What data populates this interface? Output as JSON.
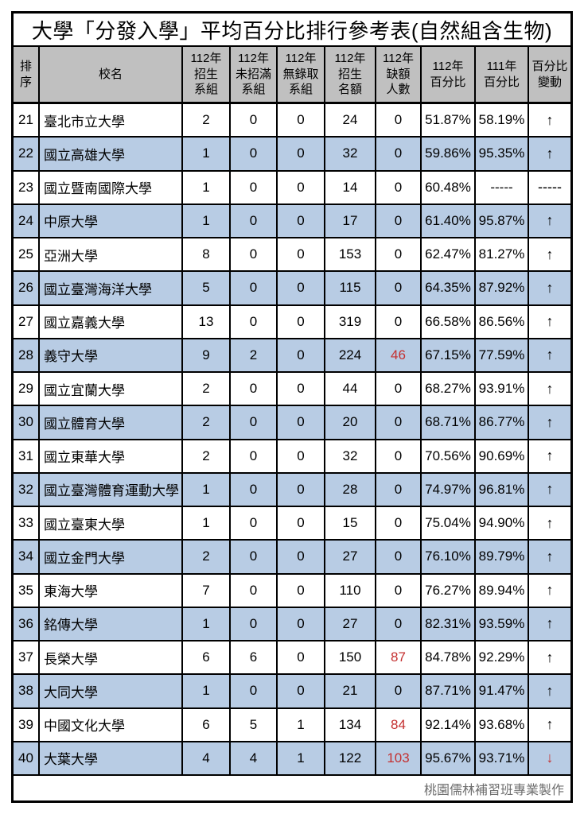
{
  "title": "大學「分發入學」平均百分比排行參考表(自然組含生物)",
  "footer": {
    "credit": "桃園儒林補習班專業製作"
  },
  "colors": {
    "header_bg": "#c0c0c0",
    "stripe_row_bg": "#b8cce4",
    "alert_red": "#c43030",
    "footer_text": "#6e6e6e",
    "border": "#000000"
  },
  "table": {
    "columns": [
      {
        "key": "rank",
        "label": "排\n序"
      },
      {
        "key": "name",
        "label": "校名"
      },
      {
        "key": "c112_groups",
        "label": "112年\n招生\n系組"
      },
      {
        "key": "c112_unfilled",
        "label": "112年\n未招滿\n系組"
      },
      {
        "key": "c112_noadmit",
        "label": "112年\n無錄取\n系組"
      },
      {
        "key": "c112_quota",
        "label": "112年\n招生\n名額"
      },
      {
        "key": "c112_vacancy",
        "label": "112年\n缺額\n人數"
      },
      {
        "key": "pct112",
        "label": "112年\n百分比"
      },
      {
        "key": "pct111",
        "label": "111年\n百分比"
      },
      {
        "key": "change",
        "label": "百分比\n變動"
      }
    ],
    "rows": [
      {
        "rank": "21",
        "name": "臺北市立大學",
        "c112_groups": "2",
        "c112_unfilled": "0",
        "c112_noadmit": "0",
        "c112_quota": "24",
        "c112_vacancy": "0",
        "pct112": "51.87%",
        "pct111": "58.19%",
        "change": "↑",
        "shaded": false,
        "red_cells": []
      },
      {
        "rank": "22",
        "name": "國立高雄大學",
        "c112_groups": "1",
        "c112_unfilled": "0",
        "c112_noadmit": "0",
        "c112_quota": "32",
        "c112_vacancy": "0",
        "pct112": "59.86%",
        "pct111": "95.35%",
        "change": "↑",
        "shaded": true,
        "red_cells": []
      },
      {
        "rank": "23",
        "name": "國立暨南國際大學",
        "c112_groups": "1",
        "c112_unfilled": "0",
        "c112_noadmit": "0",
        "c112_quota": "14",
        "c112_vacancy": "0",
        "pct112": "60.48%",
        "pct111": "-----",
        "change": "-----",
        "shaded": false,
        "red_cells": []
      },
      {
        "rank": "24",
        "name": "中原大學",
        "c112_groups": "1",
        "c112_unfilled": "0",
        "c112_noadmit": "0",
        "c112_quota": "17",
        "c112_vacancy": "0",
        "pct112": "61.40%",
        "pct111": "95.87%",
        "change": "↑",
        "shaded": true,
        "red_cells": []
      },
      {
        "rank": "25",
        "name": "亞洲大學",
        "c112_groups": "8",
        "c112_unfilled": "0",
        "c112_noadmit": "0",
        "c112_quota": "153",
        "c112_vacancy": "0",
        "pct112": "62.47%",
        "pct111": "81.27%",
        "change": "↑",
        "shaded": false,
        "red_cells": []
      },
      {
        "rank": "26",
        "name": "國立臺灣海洋大學",
        "c112_groups": "5",
        "c112_unfilled": "0",
        "c112_noadmit": "0",
        "c112_quota": "115",
        "c112_vacancy": "0",
        "pct112": "64.35%",
        "pct111": "87.92%",
        "change": "↑",
        "shaded": true,
        "red_cells": []
      },
      {
        "rank": "27",
        "name": "國立嘉義大學",
        "c112_groups": "13",
        "c112_unfilled": "0",
        "c112_noadmit": "0",
        "c112_quota": "319",
        "c112_vacancy": "0",
        "pct112": "66.58%",
        "pct111": "86.56%",
        "change": "↑",
        "shaded": false,
        "red_cells": []
      },
      {
        "rank": "28",
        "name": "義守大學",
        "c112_groups": "9",
        "c112_unfilled": "2",
        "c112_noadmit": "0",
        "c112_quota": "224",
        "c112_vacancy": "46",
        "pct112": "67.15%",
        "pct111": "77.59%",
        "change": "↑",
        "shaded": true,
        "red_cells": [
          "c112_vacancy"
        ]
      },
      {
        "rank": "29",
        "name": "國立宜蘭大學",
        "c112_groups": "2",
        "c112_unfilled": "0",
        "c112_noadmit": "0",
        "c112_quota": "44",
        "c112_vacancy": "0",
        "pct112": "68.27%",
        "pct111": "93.91%",
        "change": "↑",
        "shaded": false,
        "red_cells": []
      },
      {
        "rank": "30",
        "name": "國立體育大學",
        "c112_groups": "2",
        "c112_unfilled": "0",
        "c112_noadmit": "0",
        "c112_quota": "20",
        "c112_vacancy": "0",
        "pct112": "68.71%",
        "pct111": "86.77%",
        "change": "↑",
        "shaded": true,
        "red_cells": []
      },
      {
        "rank": "31",
        "name": "國立東華大學",
        "c112_groups": "2",
        "c112_unfilled": "0",
        "c112_noadmit": "0",
        "c112_quota": "32",
        "c112_vacancy": "0",
        "pct112": "70.56%",
        "pct111": "90.69%",
        "change": "↑",
        "shaded": false,
        "red_cells": []
      },
      {
        "rank": "32",
        "name": "國立臺灣體育運動大學",
        "c112_groups": "1",
        "c112_unfilled": "0",
        "c112_noadmit": "0",
        "c112_quota": "28",
        "c112_vacancy": "0",
        "pct112": "74.97%",
        "pct111": "96.81%",
        "change": "↑",
        "shaded": true,
        "red_cells": []
      },
      {
        "rank": "33",
        "name": "國立臺東大學",
        "c112_groups": "1",
        "c112_unfilled": "0",
        "c112_noadmit": "0",
        "c112_quota": "15",
        "c112_vacancy": "0",
        "pct112": "75.04%",
        "pct111": "94.90%",
        "change": "↑",
        "shaded": false,
        "red_cells": []
      },
      {
        "rank": "34",
        "name": "國立金門大學",
        "c112_groups": "2",
        "c112_unfilled": "0",
        "c112_noadmit": "0",
        "c112_quota": "27",
        "c112_vacancy": "0",
        "pct112": "76.10%",
        "pct111": "89.79%",
        "change": "↑",
        "shaded": true,
        "red_cells": []
      },
      {
        "rank": "35",
        "name": "東海大學",
        "c112_groups": "7",
        "c112_unfilled": "0",
        "c112_noadmit": "0",
        "c112_quota": "110",
        "c112_vacancy": "0",
        "pct112": "76.27%",
        "pct111": "89.94%",
        "change": "↑",
        "shaded": false,
        "red_cells": []
      },
      {
        "rank": "36",
        "name": "銘傳大學",
        "c112_groups": "1",
        "c112_unfilled": "0",
        "c112_noadmit": "0",
        "c112_quota": "27",
        "c112_vacancy": "0",
        "pct112": "82.31%",
        "pct111": "93.59%",
        "change": "↑",
        "shaded": true,
        "red_cells": []
      },
      {
        "rank": "37",
        "name": "長榮大學",
        "c112_groups": "6",
        "c112_unfilled": "6",
        "c112_noadmit": "0",
        "c112_quota": "150",
        "c112_vacancy": "87",
        "pct112": "84.78%",
        "pct111": "92.29%",
        "change": "↑",
        "shaded": false,
        "red_cells": [
          "c112_vacancy"
        ]
      },
      {
        "rank": "38",
        "name": "大同大學",
        "c112_groups": "1",
        "c112_unfilled": "0",
        "c112_noadmit": "0",
        "c112_quota": "21",
        "c112_vacancy": "0",
        "pct112": "87.71%",
        "pct111": "91.47%",
        "change": "↑",
        "shaded": true,
        "red_cells": []
      },
      {
        "rank": "39",
        "name": "中國文化大學",
        "c112_groups": "6",
        "c112_unfilled": "5",
        "c112_noadmit": "1",
        "c112_quota": "134",
        "c112_vacancy": "84",
        "pct112": "92.14%",
        "pct111": "93.68%",
        "change": "↑",
        "shaded": false,
        "red_cells": [
          "c112_vacancy"
        ]
      },
      {
        "rank": "40",
        "name": "大葉大學",
        "c112_groups": "4",
        "c112_unfilled": "4",
        "c112_noadmit": "1",
        "c112_quota": "122",
        "c112_vacancy": "103",
        "pct112": "95.67%",
        "pct111": "93.71%",
        "change": "↓",
        "shaded": true,
        "red_cells": [
          "c112_vacancy",
          "change"
        ]
      }
    ]
  }
}
